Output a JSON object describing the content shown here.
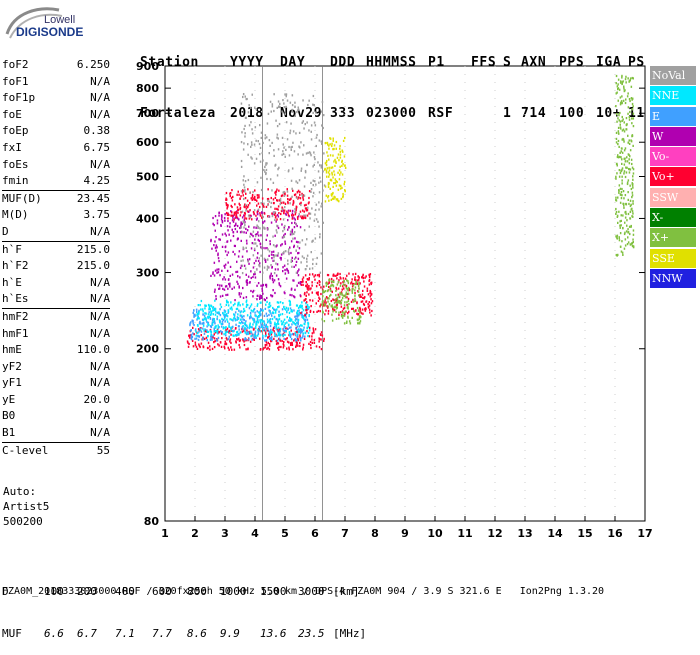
{
  "logo": {
    "line1": "Lowell",
    "line2": "DIGISONDE"
  },
  "header": {
    "row1": [
      "Station",
      "YYYY",
      "DAY",
      "DDD",
      "HHMMSS",
      "P1",
      "FFS",
      "S",
      "AXN",
      "PPS",
      "IGA",
      "PS"
    ],
    "row2": [
      "Fortaleza",
      "2018",
      "Nov29",
      "333",
      "023000",
      "RSF",
      "",
      "1",
      "714",
      "100",
      "10+",
      "11"
    ]
  },
  "params": [
    {
      "group": 1,
      "items": [
        {
          "k": "foF2",
          "v": "6.250"
        },
        {
          "k": "foF1",
          "v": "N/A"
        },
        {
          "k": "foF1p",
          "v": "N/A"
        },
        {
          "k": "foE",
          "v": "N/A"
        },
        {
          "k": "foEp",
          "v": "0.38"
        },
        {
          "k": "fxI",
          "v": "6.75"
        },
        {
          "k": "foEs",
          "v": "N/A"
        },
        {
          "k": "fmin",
          "v": "4.25"
        }
      ]
    },
    {
      "group": 2,
      "items": [
        {
          "k": "MUF(D)",
          "v": "23.45"
        },
        {
          "k": "M(D)",
          "v": "3.75"
        },
        {
          "k": "D",
          "v": "N/A"
        }
      ]
    },
    {
      "group": 3,
      "items": [
        {
          "k": "h`F",
          "v": "215.0"
        },
        {
          "k": "h`F2",
          "v": "215.0"
        },
        {
          "k": "h`E",
          "v": "N/A"
        },
        {
          "k": "h`Es",
          "v": "N/A"
        }
      ]
    },
    {
      "group": 4,
      "items": [
        {
          "k": "hmF2",
          "v": "N/A"
        },
        {
          "k": "hmF1",
          "v": "N/A"
        },
        {
          "k": "hmE",
          "v": "110.0"
        },
        {
          "k": "yF2",
          "v": "N/A"
        },
        {
          "k": "yF1",
          "v": "N/A"
        },
        {
          "k": "yE",
          "v": "20.0"
        },
        {
          "k": "B0",
          "v": "N/A"
        },
        {
          "k": "B1",
          "v": "N/A"
        }
      ]
    },
    {
      "group": 5,
      "items": [
        {
          "k": "C-level",
          "v": "55"
        }
      ]
    }
  ],
  "auto": {
    "line1": "Auto:",
    "line2": "Artist5",
    "line3": "500200"
  },
  "footer": {
    "d_label": "D",
    "d_values": [
      "100",
      "200",
      "400",
      "600",
      "800",
      "1000",
      "1500",
      "3000",
      "[km]"
    ],
    "muf_label": "MUF",
    "muf_values": [
      "6.6",
      "6.7",
      "7.1",
      "7.7",
      "8.6",
      "9.9",
      "13.6",
      "23.5",
      "[MHz]"
    ],
    "info": "FZA0M_2018333023000.RSF / 320fx256h 50 kHz 5.0 km / DPS-4 FZA0M 904 / 3.9 S 321.6 E   Ion2Png 1.3.20"
  },
  "legend": [
    {
      "label": "NoVal",
      "color": "#a0a0a0"
    },
    {
      "label": "NNE",
      "color": "#00e8ff"
    },
    {
      "label": "E",
      "color": "#40a0ff"
    },
    {
      "label": "W",
      "color": "#b000b0"
    },
    {
      "label": "Vo-",
      "color": "#ff40c0"
    },
    {
      "label": "Vo+",
      "color": "#ff0030"
    },
    {
      "label": "SSW",
      "color": "#ffb0b0"
    },
    {
      "label": "X-",
      "color": "#008000"
    },
    {
      "label": "X+",
      "color": "#80c040"
    },
    {
      "label": "SSE",
      "color": "#e0e000"
    },
    {
      "label": "NNW",
      "color": "#2020e0"
    }
  ],
  "chart_data": {
    "type": "scatter",
    "xlim": [
      1,
      17
    ],
    "ylim": [
      80,
      900
    ],
    "y_scale": "log",
    "xticks": [
      1,
      2,
      3,
      4,
      5,
      6,
      7,
      8,
      9,
      10,
      11,
      12,
      13,
      14,
      15,
      16,
      17
    ],
    "yticks": [
      80,
      200,
      300,
      400,
      500,
      600,
      700,
      800,
      900
    ],
    "vertical_markers": [
      {
        "x": 4.25,
        "label": ""
      },
      {
        "x": 6.25,
        "label": ""
      }
    ],
    "regions": [
      {
        "name": "Vo+",
        "x": [
          1.7,
          6.3
        ],
        "y": [
          200,
          225
        ]
      },
      {
        "name": "E",
        "x": [
          1.8,
          5.8
        ],
        "y": [
          210,
          250
        ]
      },
      {
        "name": "NNE",
        "x": [
          2.0,
          5.8
        ],
        "y": [
          215,
          260
        ]
      },
      {
        "name": "Vo+",
        "x": [
          5.5,
          7.9
        ],
        "y": [
          240,
          300
        ]
      },
      {
        "name": "X+",
        "x": [
          6.2,
          7.5
        ],
        "y": [
          230,
          290
        ]
      },
      {
        "name": "W",
        "x": [
          2.5,
          5.5
        ],
        "y": [
          260,
          420
        ]
      },
      {
        "name": "Vo+",
        "x": [
          3.0,
          5.8
        ],
        "y": [
          400,
          470
        ]
      },
      {
        "name": "SSE",
        "x": [
          6.3,
          7.0
        ],
        "y": [
          440,
          620
        ]
      },
      {
        "name": "NoVal",
        "x": [
          3.5,
          6.3
        ],
        "y": [
          300,
          780
        ]
      },
      {
        "name": "X+",
        "x": [
          16.0,
          16.6
        ],
        "y": [
          330,
          860
        ]
      }
    ]
  }
}
